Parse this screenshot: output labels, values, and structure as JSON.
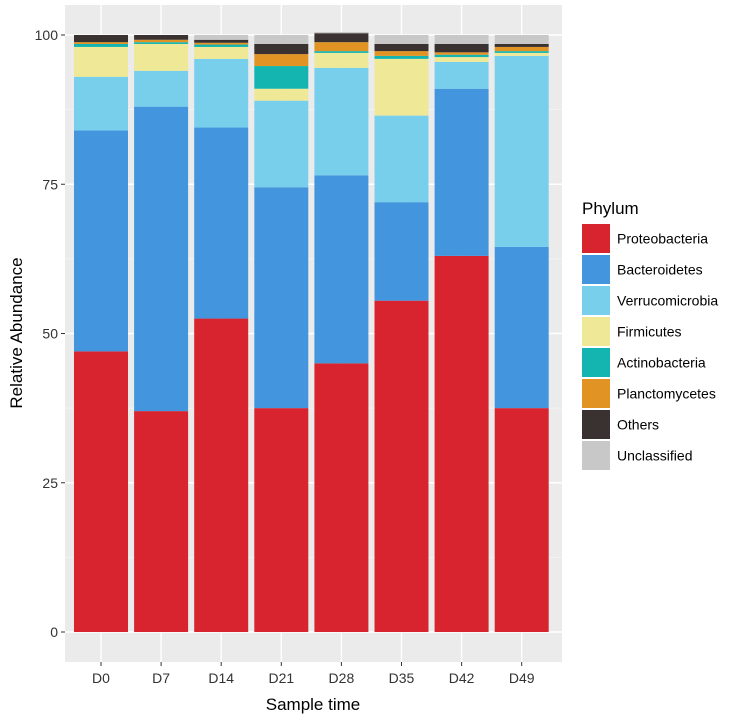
{
  "chart_data": {
    "type": "bar",
    "stacked": true,
    "title": "",
    "xlabel": "Sample time",
    "ylabel": "Relative Abundance",
    "ylim": [
      0,
      100
    ],
    "yticks": [
      0,
      25,
      50,
      75,
      100
    ],
    "grid": true,
    "legend_position": "right",
    "legend_title": "Phylum",
    "categories": [
      "D0",
      "D7",
      "D14",
      "D21",
      "D28",
      "D35",
      "D42",
      "D49"
    ],
    "series": [
      {
        "name": "Proteobacteria",
        "color": "#D7242F",
        "values": [
          47.0,
          37.0,
          52.5,
          37.5,
          45.0,
          55.5,
          63.0,
          37.5
        ]
      },
      {
        "name": "Bacteroidetes",
        "color": "#4396DE",
        "values": [
          37.0,
          51.0,
          32.0,
          37.0,
          31.5,
          16.5,
          28.0,
          27.0
        ]
      },
      {
        "name": "Verrucomicrobia",
        "color": "#78CFEC",
        "values": [
          9.0,
          6.0,
          11.5,
          14.5,
          18.0,
          14.5,
          4.5,
          32.0
        ]
      },
      {
        "name": "Firmicutes",
        "color": "#EFE897",
        "values": [
          5.0,
          4.5,
          2.0,
          2.0,
          2.5,
          9.5,
          0.8,
          0.5
        ]
      },
      {
        "name": "Actinobacteria",
        "color": "#14B5B0",
        "values": [
          0.5,
          0.3,
          0.4,
          3.8,
          0.3,
          0.5,
          0.4,
          0.3
        ]
      },
      {
        "name": "Planctomycetes",
        "color": "#E19424",
        "values": [
          0.3,
          0.4,
          0.3,
          2.0,
          1.5,
          0.8,
          0.4,
          0.7
        ]
      },
      {
        "name": "Others",
        "color": "#3A3230",
        "values": [
          1.2,
          0.8,
          0.5,
          1.7,
          1.5,
          1.2,
          1.4,
          0.5
        ]
      },
      {
        "name": "Unclassified",
        "color": "#C8C8C8",
        "values": [
          0.0,
          0.0,
          0.8,
          1.5,
          0.2,
          1.5,
          1.5,
          1.5
        ]
      }
    ]
  }
}
